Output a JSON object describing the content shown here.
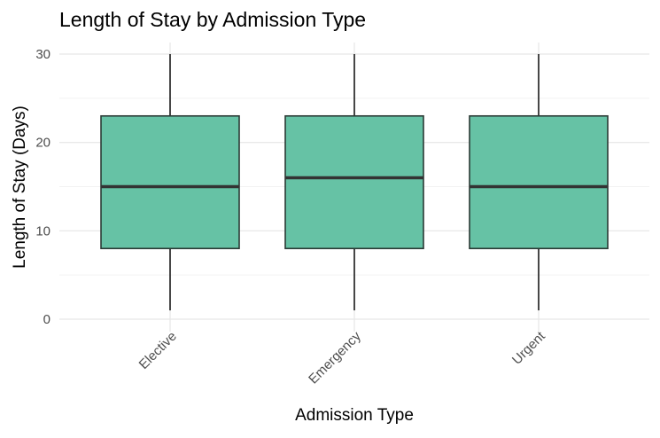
{
  "chart_data": {
    "type": "boxplot",
    "title": "Length of Stay by Admission Type",
    "xlabel": "Admission Type",
    "ylabel": "Length of Stay (Days)",
    "categories": [
      "Elective",
      "Emergency",
      "Urgent"
    ],
    "boxes": [
      {
        "category": "Elective",
        "min": 1,
        "q1": 8,
        "median": 15,
        "q3": 23,
        "max": 30
      },
      {
        "category": "Emergency",
        "min": 1,
        "q1": 8,
        "median": 16,
        "q3": 23,
        "max": 30
      },
      {
        "category": "Urgent",
        "min": 1,
        "q1": 8,
        "median": 15,
        "q3": 23,
        "max": 30
      }
    ],
    "yticks": [
      0,
      10,
      20,
      30
    ],
    "ylim": [
      -0.5,
      31.5
    ],
    "grid": true,
    "legend": "none",
    "colors": {
      "box_fill": "#66c2a5",
      "box_outline": "#2b3a35",
      "median": "#333333",
      "whisker": "#1a1a1a",
      "grid_major": "#e6e6e6",
      "grid_minor": "#f2f2f2"
    }
  }
}
